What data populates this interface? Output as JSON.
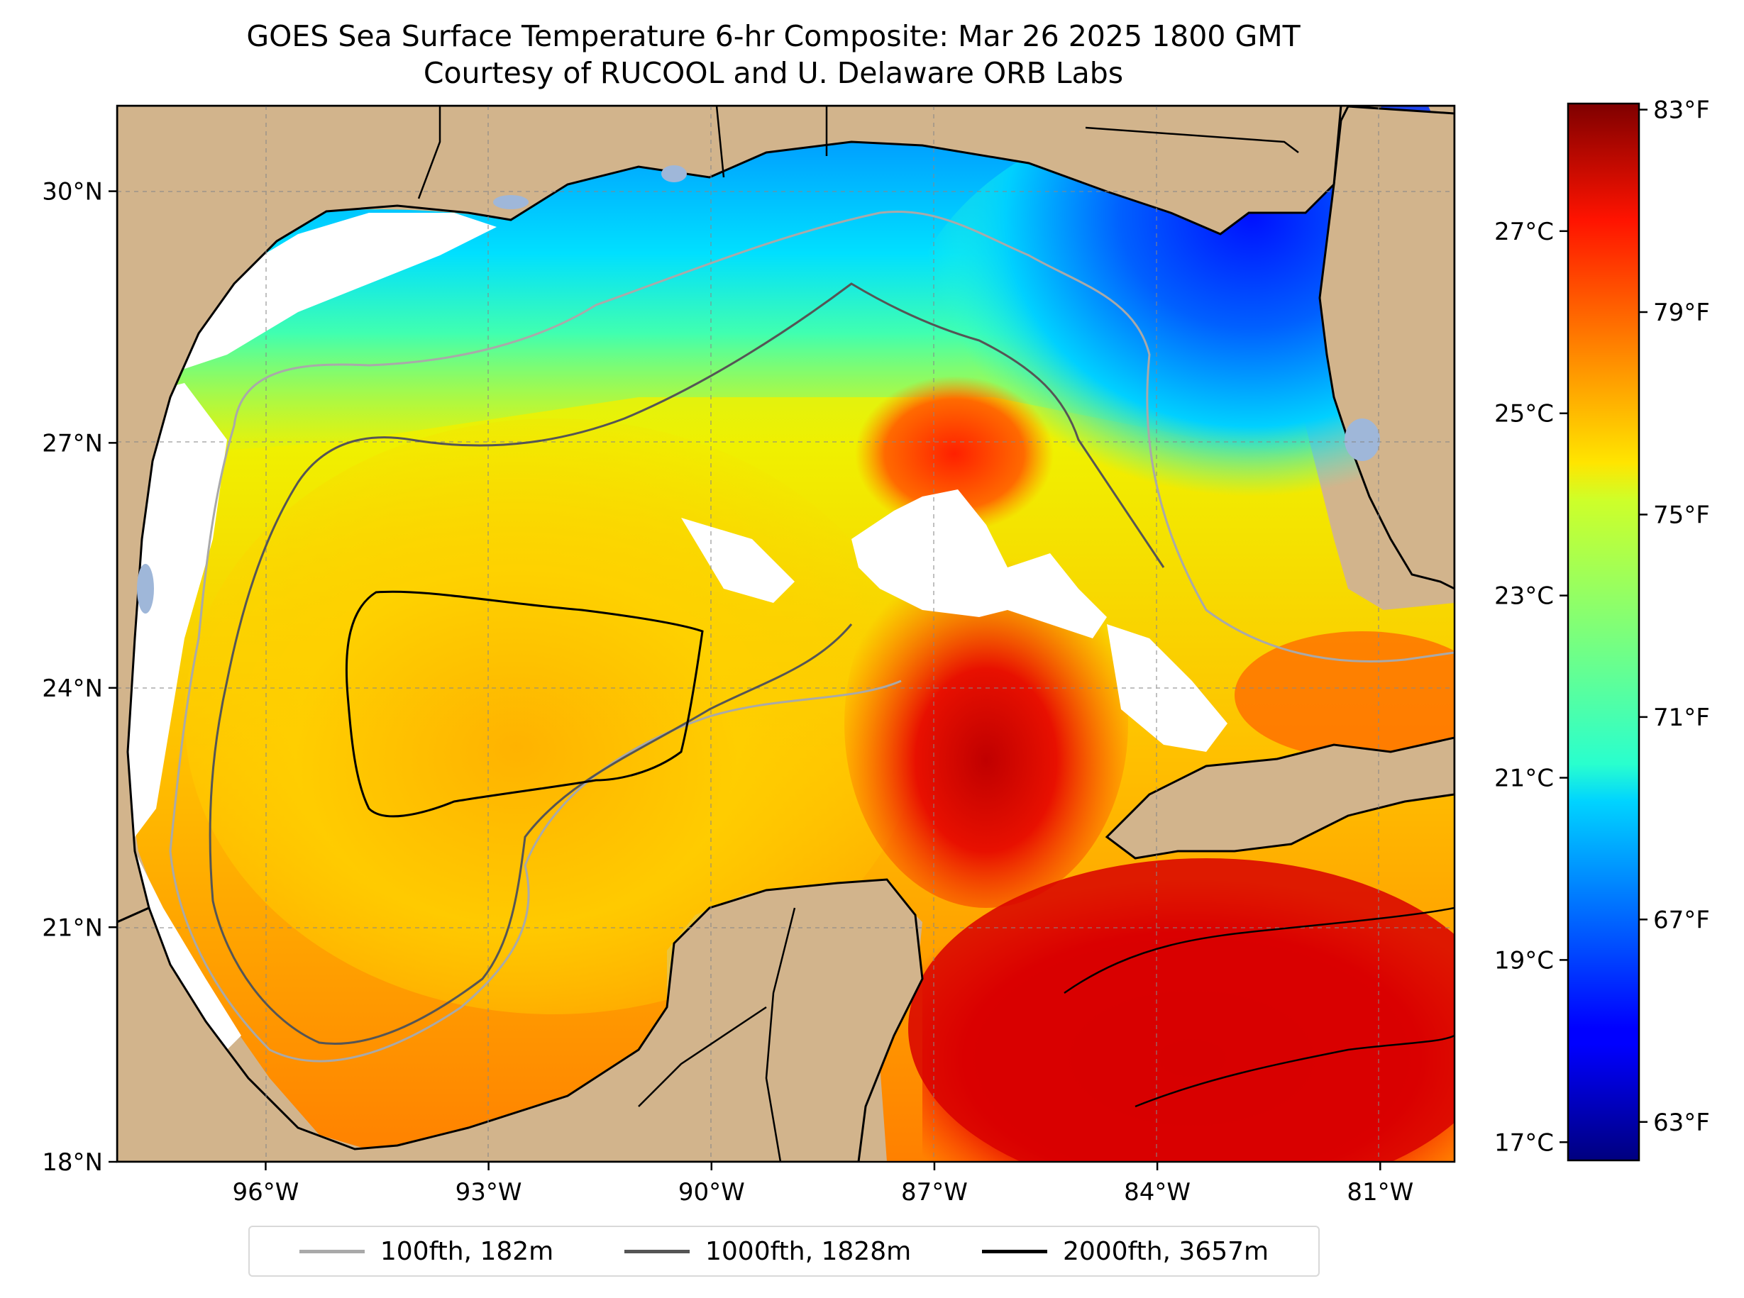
{
  "title": {
    "line1": "GOES Sea Surface Temperature 6-hr Composite: Mar 26 2025 1800 GMT",
    "line2": "Courtesy of RUCOOL and U. Delaware ORB Labs"
  },
  "map": {
    "lon_range": [
      -98,
      -80
    ],
    "lat_range": [
      18,
      31
    ],
    "x_ticks": [
      {
        "lon": -96,
        "label": "96°W"
      },
      {
        "lon": -93,
        "label": "93°W"
      },
      {
        "lon": -90,
        "label": "90°W"
      },
      {
        "lon": -87,
        "label": "87°W"
      },
      {
        "lon": -84,
        "label": "84°W"
      },
      {
        "lon": -81,
        "label": "81°W"
      }
    ],
    "y_ticks": [
      {
        "lat": 30,
        "label": "30°N"
      },
      {
        "lat": 27,
        "label": "27°N"
      },
      {
        "lat": 24,
        "label": "24°N"
      },
      {
        "lat": 21,
        "label": "21°N"
      },
      {
        "lat": 18,
        "label": "18°N"
      }
    ],
    "gridlines": true,
    "land_color": "#d2b48c",
    "lake_color": "#9fb7d9",
    "no_data_color": "#ffffff"
  },
  "colorbar": {
    "colormap": "jet",
    "range_c": [
      16.8,
      28.4
    ],
    "celsius_ticks": [
      {
        "value": 17,
        "label": "17°C"
      },
      {
        "value": 19,
        "label": "19°C"
      },
      {
        "value": 21,
        "label": "21°C"
      },
      {
        "value": 23,
        "label": "23°C"
      },
      {
        "value": 25,
        "label": "25°C"
      },
      {
        "value": 27,
        "label": "27°C"
      }
    ],
    "fahrenheit_ticks": [
      {
        "value": 63,
        "label": "63°F"
      },
      {
        "value": 67,
        "label": "67°F"
      },
      {
        "value": 71,
        "label": "71°F"
      },
      {
        "value": 75,
        "label": "75°F"
      },
      {
        "value": 79,
        "label": "79°F"
      },
      {
        "value": 83,
        "label": "83°F"
      }
    ]
  },
  "legend": {
    "items": [
      {
        "label": "100fth, 182m",
        "color": "#a9a9a9"
      },
      {
        "label": "1000fth, 1828m",
        "color": "#555555"
      },
      {
        "label": "2000fth, 3657m",
        "color": "#000000"
      }
    ]
  }
}
